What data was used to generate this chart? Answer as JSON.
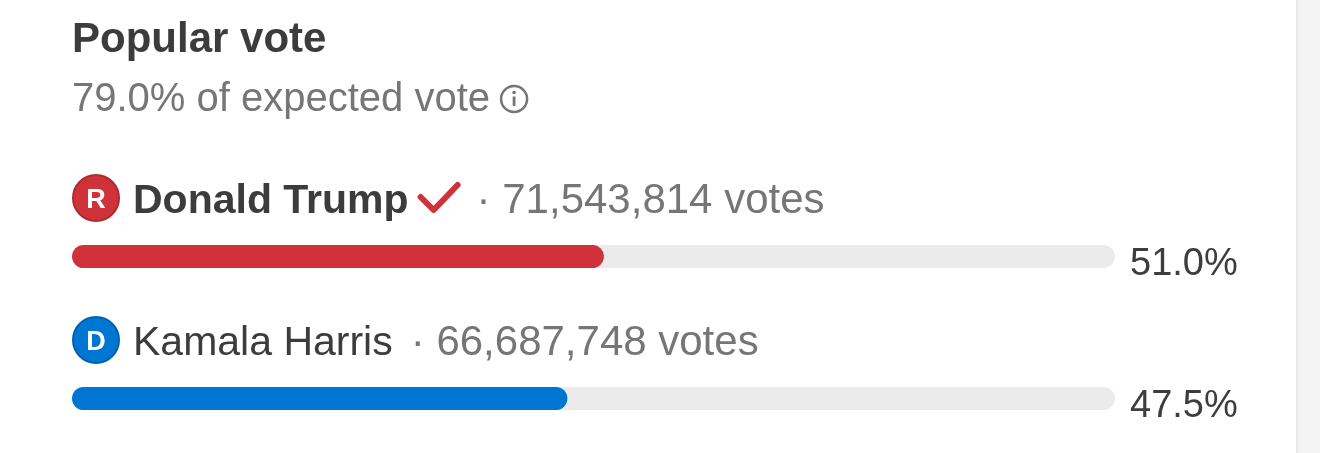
{
  "chart_data": {
    "type": "bar",
    "orientation": "horizontal",
    "title": "Popular vote",
    "subtitle": "79.0% of expected vote",
    "categories": [
      "Donald Trump",
      "Kamala Harris"
    ],
    "values": [
      51.0,
      47.5
    ],
    "colors": [
      "#d0323a",
      "#0076d3"
    ],
    "xlim": [
      0,
      100
    ],
    "value_labels": [
      "51.0%",
      "47.5%"
    ],
    "annotations": [
      "R",
      "· 71,543,814 votes",
      "D",
      "· 66,687,748 votes"
    ]
  }
}
